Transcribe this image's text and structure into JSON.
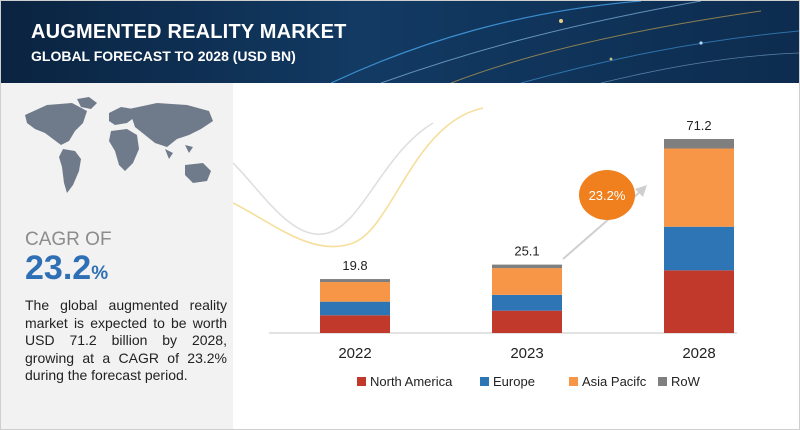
{
  "header": {
    "title": "AUGMENTED REALITY MARKET",
    "subtitle": "GLOBAL FORECAST TO 2028 (USD BN)"
  },
  "left_panel": {
    "cagr_label": "CAGR OF",
    "cagr_value": "23.2",
    "cagr_unit": "%",
    "description": "The global augmented reality market is expected to be worth USD 71.2 billion by 2028, growing at a CAGR of 23.2% during the forecast period."
  },
  "colors": {
    "north_america": "#c0392b",
    "europe": "#2e75b6",
    "asia_pacific": "#f79646",
    "row": "#7f7f7f",
    "accent_blue": "#2e6fb5",
    "badge_orange": "#f07f1e"
  },
  "chart_data": {
    "type": "bar",
    "stacked": true,
    "categories": [
      "2022",
      "2023",
      "2028"
    ],
    "totals": [
      "19.8",
      "25.1",
      "71.2"
    ],
    "series": [
      {
        "name": "North America",
        "values": [
          6.5,
          8.2,
          23.0
        ]
      },
      {
        "name": "Europe",
        "values": [
          5.0,
          5.8,
          16.0
        ]
      },
      {
        "name": "Asia Pacifc",
        "values": [
          7.2,
          9.8,
          28.7
        ]
      },
      {
        "name": "RoW",
        "values": [
          1.1,
          1.3,
          3.5
        ]
      }
    ],
    "cagr_badge": "23.2%",
    "ylim": [
      0,
      71.2
    ],
    "legend_position": "bottom",
    "grid": false
  }
}
